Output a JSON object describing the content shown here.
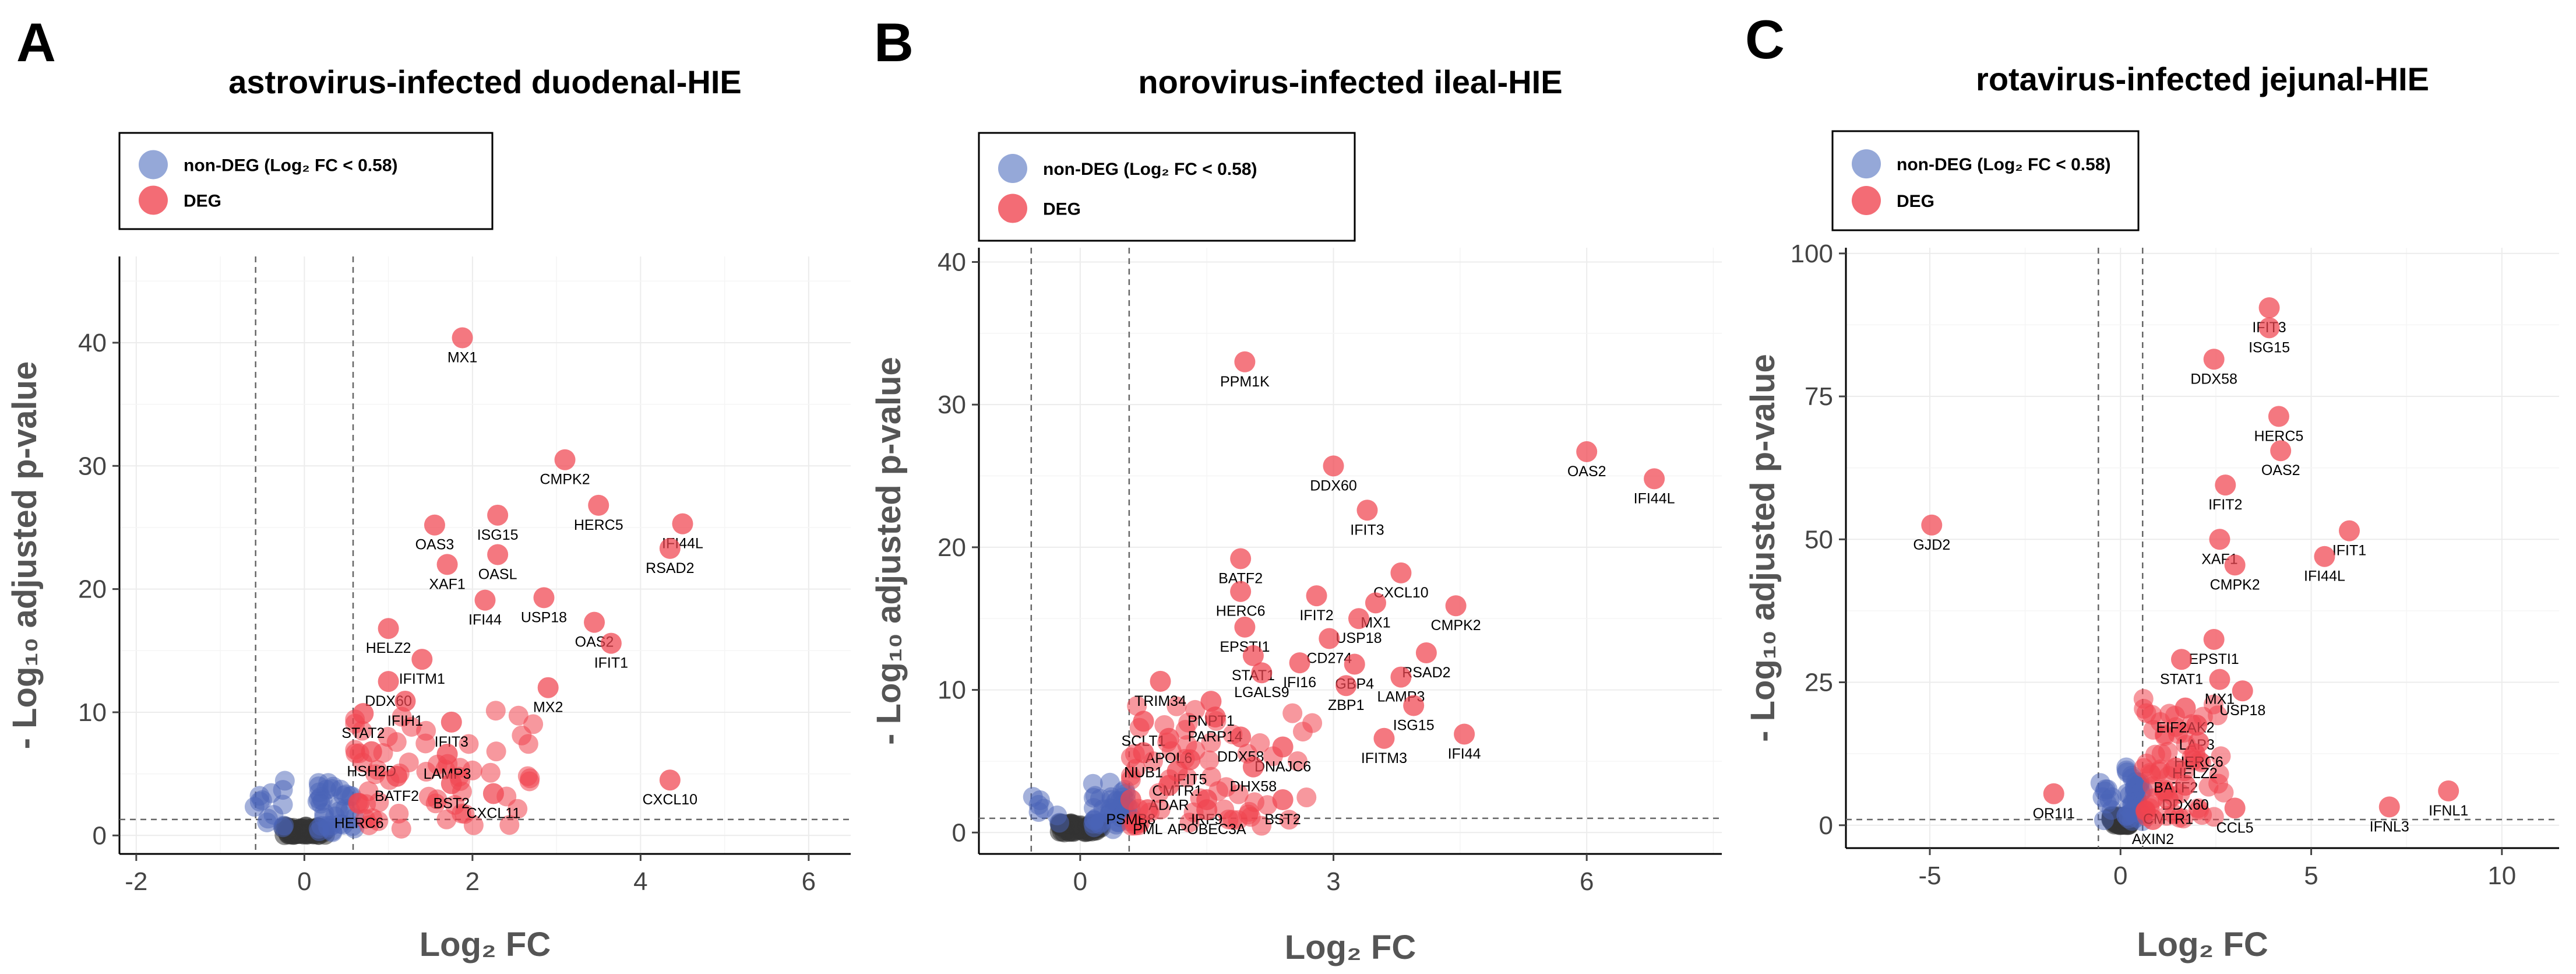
{
  "chart_data": [
    {
      "type": "scatter",
      "panel": "A",
      "title": "astrovirus-infected duodenal-HIE",
      "xlabel": "Log₂ FC",
      "ylabel": "- Log₁₀ adjusted p-value",
      "xlim": [
        -2.2,
        6.5
      ],
      "ylim": [
        -1.5,
        47
      ],
      "xticks": [
        -2,
        0,
        2,
        4,
        6
      ],
      "yticks": [
        0,
        10,
        20,
        30,
        40
      ],
      "thresholds": {
        "x": [
          -0.58,
          0.58
        ],
        "y": 1.3
      },
      "legend": {
        "position": "top-left",
        "entries": [
          {
            "label": "non-DEG (Log₂ FC < 0.58)",
            "color": "#8a9fd4"
          },
          {
            "label": "DEG",
            "color": "#f25c66"
          }
        ]
      },
      "colors": {
        "deg": "#f0444f",
        "nondeg": "#4a64b8",
        "zero": "#333333"
      },
      "genes": [
        {
          "name": "MX1",
          "x": 1.88,
          "y": 40.4,
          "label_side": "below"
        },
        {
          "name": "CMPK2",
          "x": 3.1,
          "y": 30.5,
          "label_side": "below"
        },
        {
          "name": "HERC5",
          "x": 3.5,
          "y": 26.8,
          "label_side": "below"
        },
        {
          "name": "ISG15",
          "x": 2.3,
          "y": 26.0,
          "label_side": "below"
        },
        {
          "name": "OAS3",
          "x": 1.55,
          "y": 25.2,
          "label_side": "below"
        },
        {
          "name": "IFI44L",
          "x": 4.5,
          "y": 25.3,
          "label_side": "below"
        },
        {
          "name": "RSAD2",
          "x": 4.35,
          "y": 23.3,
          "label_side": "below"
        },
        {
          "name": "OASL",
          "x": 2.3,
          "y": 22.8,
          "label_side": "below"
        },
        {
          "name": "XAF1",
          "x": 1.7,
          "y": 22.0,
          "label_side": "below"
        },
        {
          "name": "IFI44",
          "x": 2.15,
          "y": 19.1,
          "label_side": "below"
        },
        {
          "name": "USP18",
          "x": 2.85,
          "y": 19.3,
          "label_side": "below"
        },
        {
          "name": "OAS2",
          "x": 3.45,
          "y": 17.3,
          "label_side": "below"
        },
        {
          "name": "IFIT1",
          "x": 3.65,
          "y": 15.6,
          "label_side": "below"
        },
        {
          "name": "HELZ2",
          "x": 1.0,
          "y": 16.8,
          "label_side": "below"
        },
        {
          "name": "IFITM1",
          "x": 1.4,
          "y": 14.3,
          "label_side": "below"
        },
        {
          "name": "MX2",
          "x": 2.9,
          "y": 12.0,
          "label_side": "below"
        },
        {
          "name": "DDX60",
          "x": 1.0,
          "y": 12.5,
          "label_side": "below"
        },
        {
          "name": "IFIH1",
          "x": 1.2,
          "y": 10.9,
          "label_side": "below"
        },
        {
          "name": "STAT2",
          "x": 0.7,
          "y": 9.9,
          "label_side": "below"
        },
        {
          "name": "IFIT3",
          "x": 1.75,
          "y": 9.2,
          "label_side": "below"
        },
        {
          "name": "LAMP3",
          "x": 1.7,
          "y": 6.6,
          "label_side": "below"
        },
        {
          "name": "HSH2D",
          "x": 0.8,
          "y": 6.8,
          "label_side": "below"
        },
        {
          "name": "BATF2",
          "x": 1.1,
          "y": 4.8,
          "label_side": "below"
        },
        {
          "name": "BST2",
          "x": 1.75,
          "y": 4.2,
          "label_side": "below"
        },
        {
          "name": "CXCL10",
          "x": 4.35,
          "y": 4.5,
          "label_side": "below"
        },
        {
          "name": "CXCL11",
          "x": 2.25,
          "y": 3.4,
          "label_side": "below"
        },
        {
          "name": "HERC6",
          "x": 0.65,
          "y": 2.6,
          "label_side": "below"
        }
      ]
    },
    {
      "type": "scatter",
      "panel": "B",
      "title": "norovirus-infected ileal-HIE",
      "xlabel": "Log₂ FC",
      "ylabel": "- Log₁₀ adjusted p-value",
      "xlim": [
        -1.2,
        7.6
      ],
      "ylim": [
        -1.5,
        41
      ],
      "xticks": [
        0,
        3,
        6
      ],
      "yticks": [
        0,
        10,
        20,
        30,
        40
      ],
      "thresholds": {
        "x": [
          -0.58,
          0.58
        ],
        "y": 1.0
      },
      "legend": {
        "position": "top-left",
        "entries": [
          {
            "label": "non-DEG (Log₂ FC < 0.58)",
            "color": "#8a9fd4"
          },
          {
            "label": "DEG",
            "color": "#f25c66"
          }
        ]
      },
      "colors": {
        "deg": "#f0444f",
        "nondeg": "#4a64b8",
        "zero": "#333333"
      },
      "genes": [
        {
          "name": "PPM1K",
          "x": 1.95,
          "y": 33.0,
          "label_side": "below"
        },
        {
          "name": "OAS2",
          "x": 6.0,
          "y": 26.7,
          "label_side": "below"
        },
        {
          "name": "IFI44L",
          "x": 6.8,
          "y": 24.8,
          "label_side": "below"
        },
        {
          "name": "DDX60",
          "x": 3.0,
          "y": 25.7,
          "label_side": "below"
        },
        {
          "name": "IFIT3",
          "x": 3.4,
          "y": 22.6,
          "label_side": "below"
        },
        {
          "name": "BATF2",
          "x": 1.9,
          "y": 19.2,
          "label_side": "below"
        },
        {
          "name": "CXCL10",
          "x": 3.8,
          "y": 18.2,
          "label_side": "below"
        },
        {
          "name": "HERC6",
          "x": 1.9,
          "y": 16.9,
          "label_side": "below"
        },
        {
          "name": "IFIT2",
          "x": 2.8,
          "y": 16.6,
          "label_side": "below"
        },
        {
          "name": "MX1",
          "x": 3.5,
          "y": 16.1,
          "label_side": "below"
        },
        {
          "name": "CMPK2",
          "x": 4.45,
          "y": 15.9,
          "label_side": "below"
        },
        {
          "name": "USP18",
          "x": 3.3,
          "y": 15.0,
          "label_side": "below"
        },
        {
          "name": "EPSTI1",
          "x": 1.95,
          "y": 14.4,
          "label_side": "below"
        },
        {
          "name": "CD274",
          "x": 2.95,
          "y": 13.6,
          "label_side": "below"
        },
        {
          "name": "STAT1",
          "x": 2.05,
          "y": 12.4,
          "label_side": "below"
        },
        {
          "name": "RSAD2",
          "x": 4.1,
          "y": 12.6,
          "label_side": "below"
        },
        {
          "name": "IFI16",
          "x": 2.6,
          "y": 11.9,
          "label_side": "below"
        },
        {
          "name": "GBP4",
          "x": 3.25,
          "y": 11.8,
          "label_side": "below"
        },
        {
          "name": "LGALS9",
          "x": 2.15,
          "y": 11.2,
          "label_side": "below"
        },
        {
          "name": "LAMP3",
          "x": 3.8,
          "y": 10.9,
          "label_side": "below"
        },
        {
          "name": "ZBP1",
          "x": 3.15,
          "y": 10.3,
          "label_side": "below"
        },
        {
          "name": "TRIM34",
          "x": 0.95,
          "y": 10.6,
          "label_side": "below"
        },
        {
          "name": "ISG15",
          "x": 3.95,
          "y": 8.9,
          "label_side": "below"
        },
        {
          "name": "PNPT1",
          "x": 1.55,
          "y": 9.2,
          "label_side": "below"
        },
        {
          "name": "PARP14",
          "x": 1.6,
          "y": 8.1,
          "label_side": "below"
        },
        {
          "name": "SCLT1",
          "x": 0.75,
          "y": 7.8,
          "label_side": "below"
        },
        {
          "name": "IFITM3",
          "x": 3.6,
          "y": 6.6,
          "label_side": "below"
        },
        {
          "name": "IFI44",
          "x": 4.55,
          "y": 6.9,
          "label_side": "below"
        },
        {
          "name": "APOL6",
          "x": 1.05,
          "y": 6.6,
          "label_side": "below"
        },
        {
          "name": "DDX58",
          "x": 1.9,
          "y": 6.7,
          "label_side": "below"
        },
        {
          "name": "DNAJC6",
          "x": 2.4,
          "y": 6.0,
          "label_side": "below"
        },
        {
          "name": "NUB1",
          "x": 0.75,
          "y": 5.6,
          "label_side": "below"
        },
        {
          "name": "IFIT5",
          "x": 1.3,
          "y": 5.1,
          "label_side": "below"
        },
        {
          "name": "DHX58",
          "x": 2.05,
          "y": 4.6,
          "label_side": "below"
        },
        {
          "name": "CMTR1",
          "x": 1.15,
          "y": 4.3,
          "label_side": "below"
        },
        {
          "name": "ADAR",
          "x": 1.05,
          "y": 3.3,
          "label_side": "below"
        },
        {
          "name": "PSMB8",
          "x": 0.6,
          "y": 2.3,
          "label_side": "below"
        },
        {
          "name": "IRF9",
          "x": 1.5,
          "y": 2.3,
          "label_side": "below"
        },
        {
          "name": "BST2",
          "x": 2.4,
          "y": 2.3,
          "label_side": "below"
        },
        {
          "name": "PML",
          "x": 0.8,
          "y": 1.6,
          "label_side": "below"
        },
        {
          "name": "APOBEC3A",
          "x": 1.5,
          "y": 1.6,
          "label_side": "below"
        }
      ]
    },
    {
      "type": "scatter",
      "panel": "C",
      "title": "rotavirus-infected jejunal-HIE",
      "xlabel": "Log₂ FC",
      "ylabel": "- Log₁₀ adjusted p-value",
      "xlim": [
        -7.2,
        11.5
      ],
      "ylim": [
        -4,
        101
      ],
      "xticks": [
        -5,
        0,
        5,
        10
      ],
      "yticks": [
        0,
        25,
        50,
        75,
        100
      ],
      "thresholds": {
        "x": [
          -0.58,
          0.58
        ],
        "y": 1.0
      },
      "legend": {
        "position": "top-left",
        "entries": [
          {
            "label": "non-DEG (Log₂ FC < 0.58)",
            "color": "#8a9fd4"
          },
          {
            "label": "DEG",
            "color": "#f25c66"
          }
        ]
      },
      "colors": {
        "deg": "#f0444f",
        "nondeg": "#4a64b8",
        "zero": "#333333"
      },
      "genes": [
        {
          "name": "IFIT3",
          "x": 3.9,
          "y": 90.5,
          "label_side": "below"
        },
        {
          "name": "ISG15",
          "x": 3.9,
          "y": 87.0,
          "label_side": "below"
        },
        {
          "name": "DDX58",
          "x": 2.45,
          "y": 81.5,
          "label_side": "below"
        },
        {
          "name": "HERC5",
          "x": 4.15,
          "y": 71.5,
          "label_side": "below"
        },
        {
          "name": "OAS2",
          "x": 4.2,
          "y": 65.5,
          "label_side": "below"
        },
        {
          "name": "IFIT2",
          "x": 2.75,
          "y": 59.5,
          "label_side": "below"
        },
        {
          "name": "GJD2",
          "x": -4.95,
          "y": 52.5,
          "label_side": "below"
        },
        {
          "name": "IFIT1",
          "x": 6.0,
          "y": 51.5,
          "label_side": "below"
        },
        {
          "name": "XAF1",
          "x": 2.6,
          "y": 50.0,
          "label_side": "below"
        },
        {
          "name": "IFI44L",
          "x": 5.35,
          "y": 47.0,
          "label_side": "below"
        },
        {
          "name": "CMPK2",
          "x": 3.0,
          "y": 45.5,
          "label_side": "below"
        },
        {
          "name": "EPSTI1",
          "x": 2.45,
          "y": 32.5,
          "label_side": "below"
        },
        {
          "name": "STAT1",
          "x": 1.6,
          "y": 29.0,
          "label_side": "below"
        },
        {
          "name": "MX1",
          "x": 2.6,
          "y": 25.5,
          "label_side": "below"
        },
        {
          "name": "USP18",
          "x": 3.2,
          "y": 23.5,
          "label_side": "below"
        },
        {
          "name": "EIF2AK2",
          "x": 1.7,
          "y": 20.5,
          "label_side": "below"
        },
        {
          "name": "LAP3",
          "x": 2.0,
          "y": 17.5,
          "label_side": "below"
        },
        {
          "name": "HERC6",
          "x": 2.05,
          "y": 14.5,
          "label_side": "below"
        },
        {
          "name": "HELZ2",
          "x": 1.95,
          "y": 12.5,
          "label_side": "below"
        },
        {
          "name": "BATF2",
          "x": 1.45,
          "y": 10.0,
          "label_side": "below"
        },
        {
          "name": "DDX60",
          "x": 1.7,
          "y": 7.0,
          "label_side": "below"
        },
        {
          "name": "OR1I1",
          "x": -1.75,
          "y": 5.5,
          "label_side": "below"
        },
        {
          "name": "CMTR1",
          "x": 1.25,
          "y": 4.5,
          "label_side": "below"
        },
        {
          "name": "CCL5",
          "x": 3.0,
          "y": 3.0,
          "label_side": "below"
        },
        {
          "name": "IFNL1",
          "x": 8.6,
          "y": 6.0,
          "label_side": "below"
        },
        {
          "name": "IFNL3",
          "x": 7.05,
          "y": 3.2,
          "label_side": "below"
        },
        {
          "name": "AXIN2",
          "x": 0.85,
          "y": 1.0,
          "label_side": "below"
        }
      ]
    }
  ]
}
